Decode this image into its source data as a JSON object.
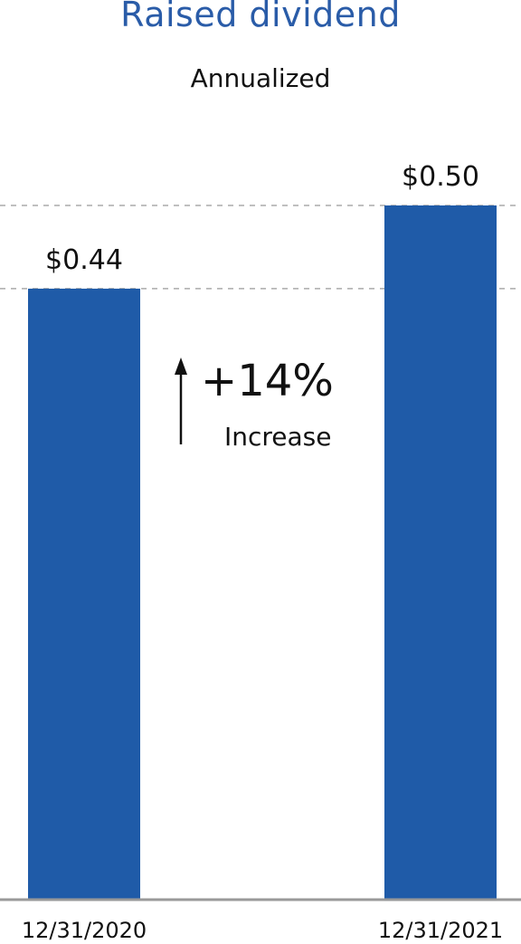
{
  "chart_data": {
    "type": "bar",
    "title": "Raised dividend",
    "subtitle": "Annualized",
    "categories": [
      "12/31/2020",
      "12/31/2021"
    ],
    "values": [
      0.44,
      0.5
    ],
    "data_labels": [
      "$0.44",
      "$0.50"
    ],
    "ylim": [
      0,
      0.5
    ],
    "reference_lines": "dashed gray lines at each bar value",
    "annotation": {
      "value": "+14%",
      "label": "Increase",
      "icon": "arrow-up-icon"
    },
    "colors": {
      "bar": "#1f5ba8",
      "title": "#2a5ca8",
      "text": "#111111",
      "dashed_line": "#aaaaaa",
      "axis": "#999999"
    }
  }
}
